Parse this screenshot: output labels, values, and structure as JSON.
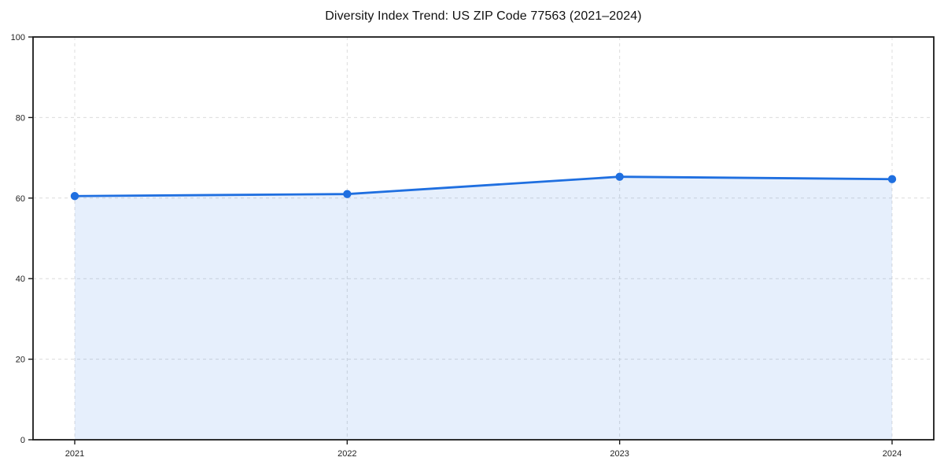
{
  "chart_data": {
    "type": "line",
    "title": "Diversity Index Trend: US ZIP Code 77563 (2021–2024)",
    "x": [
      "2021",
      "2022",
      "2023",
      "2024"
    ],
    "series": [
      {
        "name": "Diversity Index",
        "values": [
          60.5,
          61.0,
          65.3,
          64.7
        ]
      }
    ],
    "xlabel": "",
    "ylabel": "",
    "ylim": [
      0,
      100
    ],
    "yticks": [
      0,
      20,
      40,
      60,
      80,
      100
    ],
    "grid": "dashed, horizontal and vertical",
    "legend_position": "none",
    "area_fill": true,
    "markers": "filled circles",
    "colors": {
      "line": "#1f6fe0",
      "fill": "rgba(31,111,224,0.11)",
      "grid": "#dcdcdc",
      "axis": "#1a1a1a",
      "title": "#111111",
      "tick_label": "#222222",
      "background": "#ffffff"
    }
  }
}
